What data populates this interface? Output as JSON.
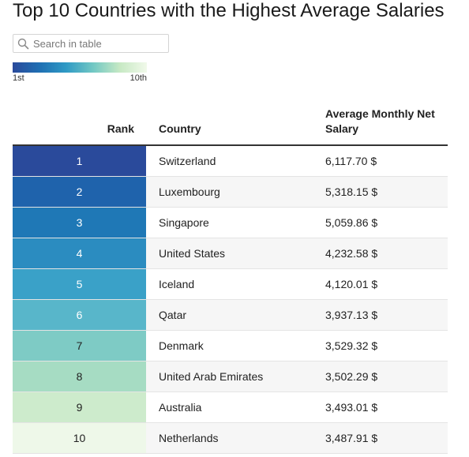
{
  "title": "Top 10 Countries with the Highest Average Salaries",
  "search": {
    "placeholder": "Search in table",
    "icon": "search-icon"
  },
  "legend": {
    "min_label": "1st",
    "max_label": "10th"
  },
  "chart_data": {
    "type": "table",
    "title": "Top 10 Countries with the Highest Average Salaries",
    "columns": [
      "Rank",
      "Country",
      "Average Monthly Net Salary"
    ],
    "rows": [
      {
        "rank": "1",
        "country": "Switzerland",
        "salary": "6,117.70 $",
        "color": "#2a4a9b",
        "text_color": "#ffffff"
      },
      {
        "rank": "2",
        "country": "Luxembourg",
        "salary": "5,318.15 $",
        "color": "#1f63ac",
        "text_color": "#ffffff"
      },
      {
        "rank": "3",
        "country": "Singapore",
        "salary": "5,059.86 $",
        "color": "#1f78b6",
        "text_color": "#ffffff"
      },
      {
        "rank": "4",
        "country": "United States",
        "salary": "4,232.58 $",
        "color": "#2b8cc0",
        "text_color": "#ffffff"
      },
      {
        "rank": "5",
        "country": "Iceland",
        "salary": "4,120.01 $",
        "color": "#3aa1c8",
        "text_color": "#ffffff"
      },
      {
        "rank": "6",
        "country": "Qatar",
        "salary": "3,937.13 $",
        "color": "#58b6ca",
        "text_color": "#ffffff"
      },
      {
        "rank": "7",
        "country": "Denmark",
        "salary": "3,529.32 $",
        "color": "#7ecbc5",
        "text_color": "#222222"
      },
      {
        "rank": "8",
        "country": "United Arab Emirates",
        "salary": "3,502.29 $",
        "color": "#a6dcc3",
        "text_color": "#222222"
      },
      {
        "rank": "9",
        "country": "Australia",
        "salary": "3,493.01 $",
        "color": "#cdebcc",
        "text_color": "#222222"
      },
      {
        "rank": "10",
        "country": "Netherlands",
        "salary": "3,487.91 $",
        "color": "#eef8e9",
        "text_color": "#222222"
      }
    ]
  }
}
